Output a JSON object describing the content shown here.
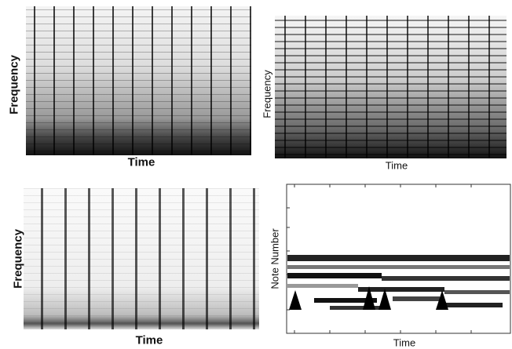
{
  "panels": [
    {
      "x_label": "Time",
      "y_label": "Frequency"
    },
    {
      "x_label": "Time",
      "y_label": "Frequency"
    },
    {
      "x_label": "Time",
      "y_label": "Frequency"
    },
    {
      "x_label": "Time",
      "y_label": "Note Number"
    }
  ]
}
